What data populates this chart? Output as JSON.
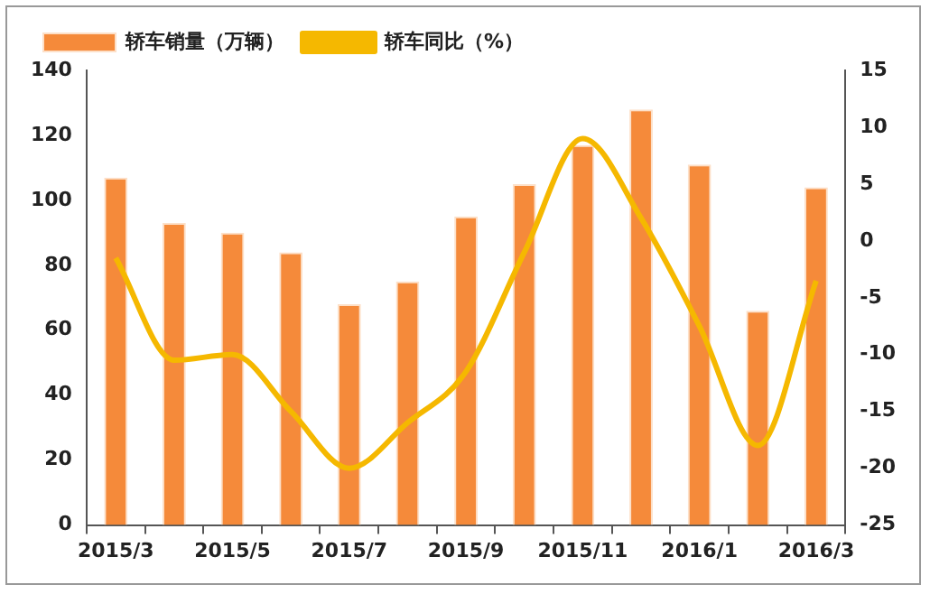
{
  "chart_data": {
    "type": "bar",
    "categories": [
      "2015/3",
      null,
      "2015/5",
      null,
      "2015/7",
      null,
      "2015/9",
      null,
      "2015/11",
      null,
      "2016/1",
      null,
      "2016/3"
    ],
    "series": [
      {
        "name": "轿车销量（万辆）",
        "color": "#f58a3a",
        "values": [
          107,
          93,
          90,
          84,
          68,
          75,
          95,
          105,
          117,
          128,
          111,
          66,
          104
        ]
      },
      {
        "name": "轿车同比（%）",
        "type": "line",
        "axis": "y2",
        "color": "#f5b800",
        "values": [
          -1.5,
          -10.5,
          -10,
          -15,
          -20,
          -16,
          -11.5,
          -1,
          9,
          2,
          -7.5,
          -18,
          -3.5
        ]
      }
    ],
    "ylim": [
      0,
      140
    ],
    "yticks": [
      0,
      20,
      40,
      60,
      80,
      100,
      120,
      140
    ],
    "y2lim": [
      -25,
      15
    ],
    "y2ticks": [
      -25,
      -20,
      -15,
      -10,
      -5,
      0,
      5,
      10,
      15
    ],
    "grid": false,
    "legend": "top left"
  }
}
